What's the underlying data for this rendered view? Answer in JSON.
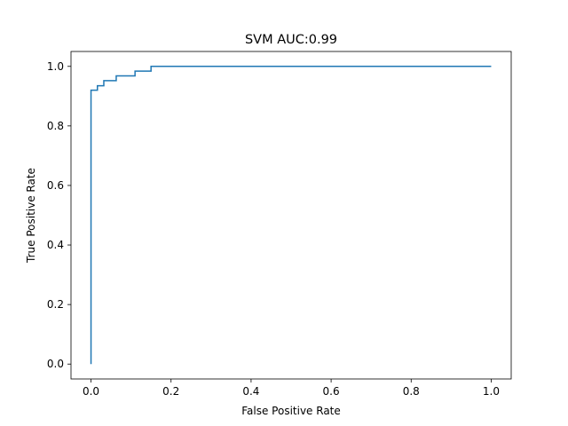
{
  "chart_data": {
    "type": "line",
    "title": "SVM AUC:0.99",
    "xlabel": "False Positive Rate",
    "ylabel": "True Positive Rate",
    "xlim": [
      -0.05,
      1.05
    ],
    "ylim": [
      -0.05,
      1.05
    ],
    "xticks": [
      0.0,
      0.2,
      0.4,
      0.6,
      0.8,
      1.0
    ],
    "xtick_labels": [
      "0.0",
      "0.2",
      "0.4",
      "0.6",
      "0.8",
      "1.0"
    ],
    "yticks": [
      0.0,
      0.2,
      0.4,
      0.6,
      0.8,
      1.0
    ],
    "ytick_labels": [
      "0.0",
      "0.2",
      "0.4",
      "0.6",
      "0.8",
      "1.0"
    ],
    "grid": false,
    "series": [
      {
        "color": "#1f77b4",
        "x": [
          0.0,
          0.0,
          0.0,
          0.016,
          0.016,
          0.032,
          0.032,
          0.048,
          0.048,
          0.063,
          0.063,
          0.08,
          0.08,
          0.11,
          0.11,
          0.15,
          0.15,
          1.0
        ],
        "y": [
          0.0,
          0.92,
          0.92,
          0.92,
          0.935,
          0.935,
          0.952,
          0.952,
          0.952,
          0.952,
          0.968,
          0.968,
          0.968,
          0.968,
          0.984,
          0.984,
          1.0,
          1.0
        ]
      }
    ]
  }
}
